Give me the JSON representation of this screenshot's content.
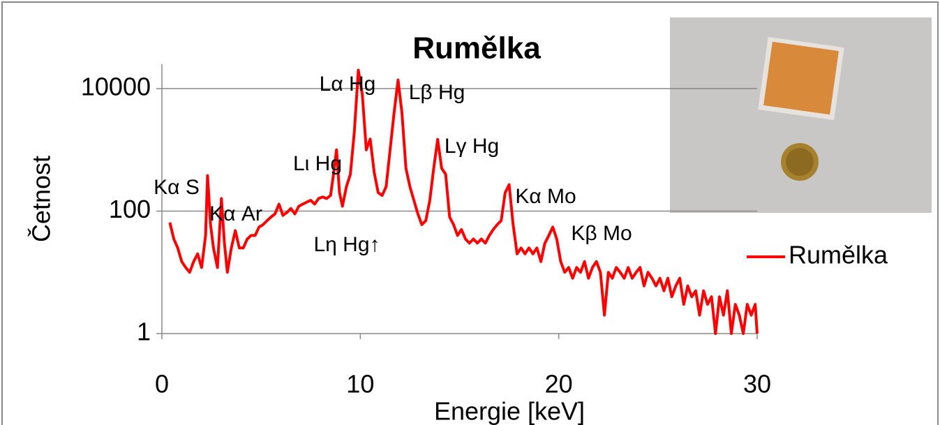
{
  "chart_data": {
    "type": "line",
    "title": "Rumělka",
    "x_label": "Energie [keV]",
    "y_label": "Četnost",
    "log_y": true,
    "grid": true,
    "legend": "right",
    "xlim": [
      0,
      30
    ],
    "xticks": [
      0,
      10,
      20,
      30
    ],
    "ylim": [
      1,
      25000
    ],
    "yticks": [
      1,
      100,
      10000
    ],
    "x": [
      0.4,
      0.6,
      0.8,
      1.0,
      1.2,
      1.4,
      1.6,
      1.8,
      2.0,
      2.2,
      2.3,
      2.45,
      2.6,
      2.8,
      3.0,
      3.15,
      3.3,
      3.5,
      3.7,
      3.9,
      4.1,
      4.3,
      4.5,
      4.7,
      4.9,
      5.1,
      5.3,
      5.5,
      5.7,
      5.9,
      6.1,
      6.3,
      6.5,
      6.7,
      6.9,
      7.1,
      7.3,
      7.5,
      7.7,
      7.9,
      8.1,
      8.3,
      8.5,
      8.65,
      8.8,
      8.95,
      9.1,
      9.3,
      9.5,
      9.7,
      9.9,
      10.1,
      10.3,
      10.5,
      10.7,
      10.9,
      11.1,
      11.3,
      11.5,
      11.7,
      11.9,
      12.1,
      12.3,
      12.5,
      12.7,
      12.9,
      13.1,
      13.3,
      13.5,
      13.7,
      13.9,
      14.1,
      14.3,
      14.5,
      14.7,
      14.9,
      15.1,
      15.3,
      15.5,
      15.7,
      15.9,
      16.1,
      16.3,
      16.5,
      16.7,
      16.9,
      17.1,
      17.3,
      17.5,
      17.7,
      17.9,
      18.1,
      18.3,
      18.5,
      18.7,
      18.9,
      19.1,
      19.3,
      19.5,
      19.7,
      19.9,
      20.1,
      20.3,
      20.5,
      20.7,
      20.9,
      21.1,
      21.3,
      21.5,
      21.7,
      21.9,
      22.1,
      22.3,
      22.5,
      22.7,
      22.9,
      23.1,
      23.3,
      23.5,
      23.7,
      23.9,
      24.1,
      24.3,
      24.5,
      24.7,
      24.9,
      25.1,
      25.3,
      25.5,
      25.7,
      25.9,
      26.1,
      26.3,
      26.5,
      26.7,
      26.9,
      27.1,
      27.3,
      27.5,
      27.7,
      27.9,
      28.1,
      28.3,
      28.5,
      28.7,
      28.9,
      29.1,
      29.3,
      29.5,
      29.7,
      29.9,
      30.0
    ],
    "series": [
      {
        "name": "Rumělka",
        "color": "#ff0000",
        "values": [
          65,
          35,
          25,
          15,
          12,
          10,
          15,
          20,
          12,
          40,
          380,
          60,
          25,
          12,
          160,
          30,
          10,
          25,
          48,
          25,
          25,
          35,
          40,
          40,
          55,
          60,
          70,
          80,
          90,
          130,
          85,
          95,
          110,
          90,
          120,
          130,
          140,
          150,
          130,
          160,
          170,
          160,
          180,
          400,
          1000,
          200,
          120,
          250,
          400,
          2000,
          20000,
          8000,
          1000,
          1500,
          430,
          200,
          180,
          250,
          1000,
          4000,
          13800,
          4000,
          500,
          250,
          150,
          90,
          60,
          70,
          150,
          500,
          1480,
          500,
          400,
          80,
          60,
          40,
          50,
          35,
          30,
          35,
          30,
          35,
          30,
          40,
          50,
          60,
          70,
          200,
          270,
          60,
          20,
          25,
          20,
          25,
          20,
          25,
          15,
          30,
          40,
          55,
          35,
          15,
          10,
          12,
          8,
          12,
          10,
          15,
          8,
          12,
          15,
          10,
          2,
          10,
          8,
          12,
          10,
          8,
          12,
          8,
          10,
          12,
          6,
          10,
          8,
          6,
          8,
          5,
          8,
          4,
          6,
          8,
          3,
          6,
          4,
          5,
          2,
          5,
          3,
          4,
          1,
          4,
          2,
          5,
          1,
          3,
          2,
          1,
          3,
          2,
          3,
          1
        ]
      }
    ],
    "annotations": [
      "Kα S",
      "Kα Ar",
      "Lι Hg",
      "Lη Hg↑",
      "Lα Hg",
      "Lβ Hg",
      "Lγ Hg",
      "Kα Mo",
      "Kβ Mo"
    ]
  }
}
